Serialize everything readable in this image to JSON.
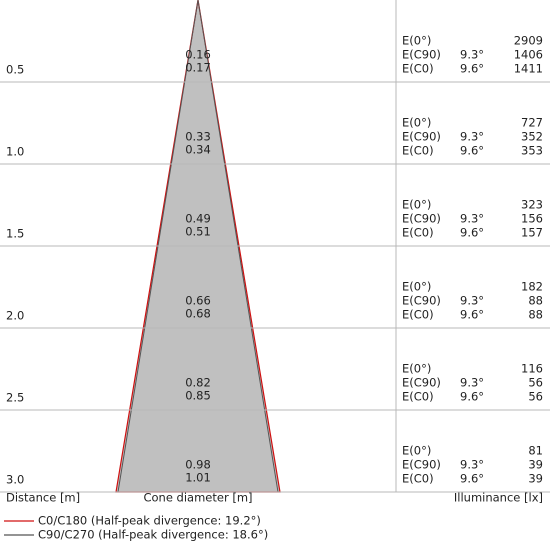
{
  "rows": [
    {
      "distance": "0.5",
      "diameters": [
        "0.16",
        "0.17"
      ],
      "labels": [
        "E(0°)",
        "E(C90)",
        "E(C0)"
      ],
      "angles": [
        "9.3°",
        "9.6°"
      ],
      "values": [
        "2909",
        "1406",
        "1411"
      ]
    },
    {
      "distance": "1.0",
      "diameters": [
        "0.33",
        "0.34"
      ],
      "labels": [
        "E(0°)",
        "E(C90)",
        "E(C0)"
      ],
      "angles": [
        "9.3°",
        "9.6°"
      ],
      "values": [
        "727",
        "352",
        "353"
      ]
    },
    {
      "distance": "1.5",
      "diameters": [
        "0.49",
        "0.51"
      ],
      "labels": [
        "E(0°)",
        "E(C90)",
        "E(C0)"
      ],
      "angles": [
        "9.3°",
        "9.6°"
      ],
      "values": [
        "323",
        "156",
        "157"
      ]
    },
    {
      "distance": "2.0",
      "diameters": [
        "0.66",
        "0.68"
      ],
      "labels": [
        "E(0°)",
        "E(C90)",
        "E(C0)"
      ],
      "angles": [
        "9.3°",
        "9.6°"
      ],
      "values": [
        "182",
        "88",
        "88"
      ]
    },
    {
      "distance": "2.5",
      "diameters": [
        "0.82",
        "0.85"
      ],
      "labels": [
        "E(0°)",
        "E(C90)",
        "E(C0)"
      ],
      "angles": [
        "9.3°",
        "9.6°"
      ],
      "values": [
        "116",
        "56",
        "56"
      ]
    },
    {
      "distance": "3.0",
      "diameters": [
        "0.98",
        "1.01"
      ],
      "labels": [
        "E(0°)",
        "E(C90)",
        "E(C0)"
      ],
      "angles": [
        "9.3°",
        "9.6°"
      ],
      "values": [
        "81",
        "39",
        "39"
      ]
    }
  ],
  "footer": {
    "distance": "Distance [m]",
    "diameter": "Cone diameter [m]",
    "illuminance": "Illuminance [lx]"
  },
  "legend": [
    "C0/C180 (Half-peak divergence: 19.2°)",
    "C90/C270 (Half-peak divergence: 18.6°)"
  ]
}
